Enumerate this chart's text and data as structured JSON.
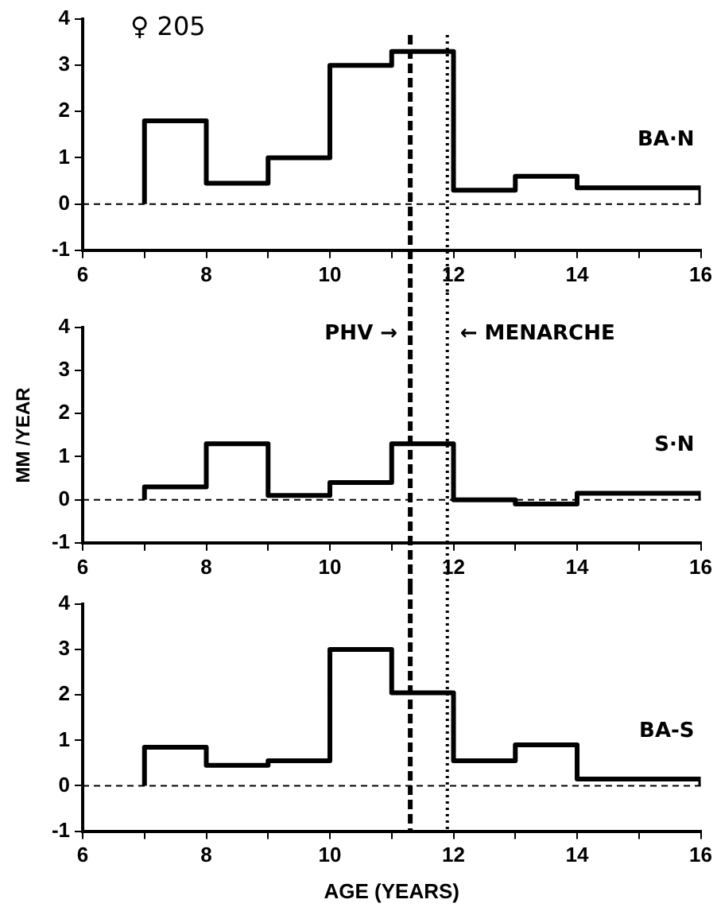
{
  "chart_data": [
    {
      "type": "step",
      "annotations": [
        "♀ 205"
      ],
      "x": [
        7,
        7,
        8,
        9,
        10,
        11,
        12,
        13,
        14,
        16,
        16
      ],
      "series": [
        {
          "name": "BA·N",
          "color": "#000000",
          "values": [
            0,
            1.8,
            0.45,
            1.0,
            3.0,
            3.3,
            0.3,
            0.6,
            0.35,
            0.35,
            0
          ]
        }
      ],
      "xlim": [
        6,
        16
      ],
      "xticks": [
        6,
        {
          "value": 7,
          "label": null
        },
        8,
        {
          "value": 9,
          "label": null
        },
        10,
        {
          "value": 11,
          "label": null
        },
        12,
        {
          "value": 13,
          "label": null
        },
        14,
        {
          "value": 15,
          "label": null
        },
        16
      ],
      "ylim": [
        -1,
        4
      ],
      "yticks": [
        -1,
        0,
        1,
        2,
        3,
        4
      ],
      "grid": false,
      "legend": false,
      "marker": "none",
      "line_style": "solid",
      "ref_lines": [
        {
          "axis": "y",
          "value": 0,
          "line_style": "dashed",
          "color": "#000000"
        },
        {
          "axis": "x",
          "value": 11.3,
          "line_style": "dashed",
          "color": "#000000"
        },
        {
          "axis": "x",
          "value": 11.9,
          "line_style": "dotted",
          "color": "#000000"
        }
      ]
    },
    {
      "type": "step",
      "ylabel": "MM /YEAR",
      "x": [
        7,
        7,
        8,
        9,
        10,
        11,
        12,
        13,
        14,
        16,
        16
      ],
      "series": [
        {
          "name": "S·N",
          "color": "#000000",
          "values": [
            0,
            0.3,
            1.3,
            0.1,
            0.4,
            1.3,
            0.0,
            -0.1,
            0.15,
            0.15,
            0
          ]
        }
      ],
      "xlim": [
        6,
        16
      ],
      "xticks": [
        6,
        {
          "value": 7,
          "label": null
        },
        8,
        {
          "value": 9,
          "label": null
        },
        10,
        {
          "value": 11,
          "label": null
        },
        12,
        {
          "value": 13,
          "label": null
        },
        14,
        {
          "value": 15,
          "label": null
        },
        16
      ],
      "ylim": [
        -1,
        4
      ],
      "yticks": [
        -1,
        0,
        1,
        2,
        3,
        4
      ],
      "grid": false,
      "legend": false,
      "marker": "none",
      "line_style": "solid",
      "ref_lines": [
        {
          "axis": "y",
          "value": 0,
          "line_style": "dashed",
          "color": "#000000"
        },
        {
          "axis": "x",
          "value": 11.3,
          "line_style": "dashed",
          "color": "#000000",
          "label": "PHV →"
        },
        {
          "axis": "x",
          "value": 11.9,
          "line_style": "dotted",
          "color": "#000000",
          "label": "← MENARCHE"
        }
      ]
    },
    {
      "type": "step",
      "xlabel": "AGE (YEARS)",
      "x": [
        7,
        7,
        8,
        9,
        10,
        11,
        12,
        13,
        14,
        16,
        16
      ],
      "series": [
        {
          "name": "BA-S",
          "color": "#000000",
          "values": [
            0,
            0.85,
            0.45,
            0.55,
            3.0,
            2.05,
            0.55,
            0.9,
            0.15,
            0.15,
            0
          ]
        }
      ],
      "xlim": [
        6,
        16
      ],
      "xticks": [
        6,
        {
          "value": 7,
          "label": null
        },
        8,
        {
          "value": 9,
          "label": null
        },
        10,
        {
          "value": 11,
          "label": null
        },
        12,
        {
          "value": 13,
          "label": null
        },
        14,
        {
          "value": 15,
          "label": null
        },
        16
      ],
      "ylim": [
        -1,
        4
      ],
      "yticks": [
        -1,
        0,
        1,
        2,
        3,
        4
      ],
      "grid": false,
      "legend": false,
      "marker": "none",
      "line_style": "solid",
      "ref_lines": [
        {
          "axis": "y",
          "value": 0,
          "line_style": "dashed",
          "color": "#000000"
        },
        {
          "axis": "x",
          "value": 11.3,
          "line_style": "dashed",
          "color": "#000000"
        },
        {
          "axis": "x",
          "value": 11.9,
          "line_style": "dotted",
          "color": "#000000"
        }
      ]
    }
  ]
}
